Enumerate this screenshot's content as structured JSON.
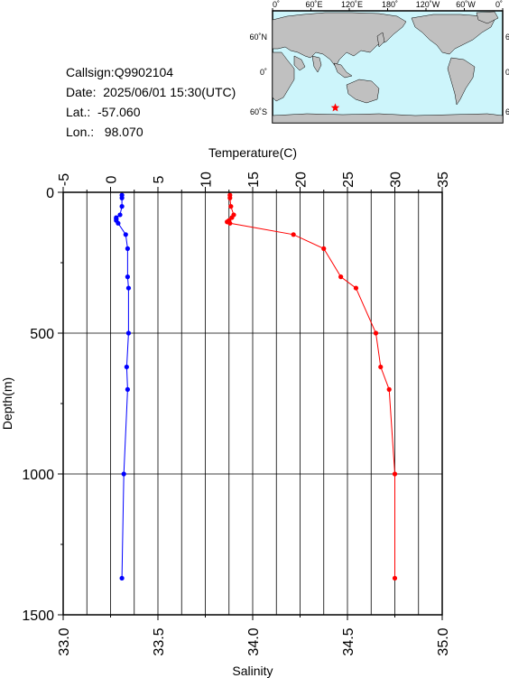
{
  "station": {
    "callsign": "Callsign:Q9902104",
    "date": "Date:  2025/06/01 15:30(UTC)",
    "lat": "Lat.:  -57.060",
    "lon": "Lon.:   98.070"
  },
  "map": {
    "top_labels": [
      "0˚",
      "60˚E",
      "120˚E",
      "180˚",
      "120˚W",
      "60˚W",
      "0˚"
    ],
    "lat_labels": [
      "60˚N",
      "0˚",
      "60˚S"
    ],
    "ocean_color": "#cdf5fb",
    "land_color": "#c0c0c0",
    "marker": {
      "name": "star-marker",
      "color": "#ff0000",
      "lon": 98.07,
      "lat": -57.06
    }
  },
  "chart_data": {
    "type": "line",
    "xlabel_top": "Temperature(C)",
    "xlabel_bottom": "Salinity",
    "ylabel": "Depth(m)",
    "temperature_axis": {
      "range": [
        -5,
        35
      ],
      "ticks": [
        "-5",
        "0",
        "5",
        "10",
        "15",
        "20",
        "25",
        "30",
        "35"
      ]
    },
    "salinity_axis": {
      "range": [
        33.0,
        35.0
      ],
      "ticks": [
        "33.0",
        "33.5",
        "34.0",
        "34.5",
        "35.0"
      ]
    },
    "depth_axis": {
      "range": [
        0,
        1500
      ],
      "inverted": true,
      "ticks": [
        "0",
        "500",
        "1000",
        "1500"
      ]
    },
    "grid": true,
    "series": [
      {
        "color": "#ff0000",
        "axis": "temperature",
        "depth": [
          10,
          20,
          50,
          80,
          90,
          100,
          105,
          110,
          150,
          200,
          300,
          340,
          500,
          620,
          700,
          1000,
          1370
        ],
        "values": [
          12.6,
          12.6,
          12.7,
          13.0,
          12.8,
          12.5,
          12.3,
          12.6,
          19.3,
          22.5,
          24.3,
          25.9,
          28.0,
          28.5,
          29.4,
          30.0,
          30.0
        ]
      },
      {
        "color": "#0000ff",
        "axis": "salinity",
        "depth": [
          10,
          20,
          50,
          80,
          90,
          95,
          100,
          110,
          150,
          200,
          300,
          340,
          500,
          620,
          700,
          1000,
          1370
        ],
        "values": [
          33.31,
          33.31,
          33.31,
          33.3,
          33.28,
          33.28,
          33.28,
          33.29,
          33.33,
          33.34,
          33.34,
          33.345,
          33.345,
          33.335,
          33.34,
          33.32,
          33.31
        ]
      }
    ]
  }
}
